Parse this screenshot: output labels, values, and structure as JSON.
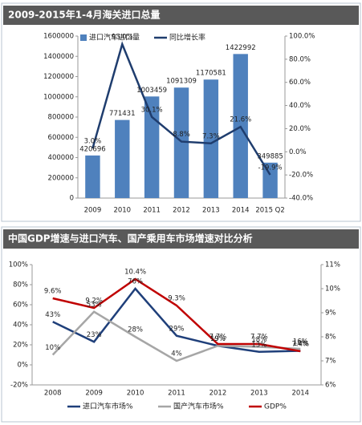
{
  "chart_data": [
    {
      "type": "bar",
      "title": "2009-2015年1-4月海关进口总量",
      "categories": [
        "2009",
        "2010",
        "2011",
        "2012",
        "2013",
        "2014",
        "2015 Q2"
      ],
      "series": [
        {
          "name": "进口汽车进口量",
          "type": "bar",
          "color": "#4f81bd",
          "values": [
            420696,
            771431,
            1003459,
            1091309,
            1170581,
            1422992,
            349885
          ]
        },
        {
          "name": "同比增长率",
          "type": "line",
          "axis": "y2",
          "color": "#1f3d6e",
          "values": [
            3.0,
            93.0,
            30.1,
            8.8,
            7.3,
            21.6,
            -19.9
          ],
          "value_labels": [
            "3.0%",
            "93.0%",
            "30.1%",
            "8.8%",
            "7.3%",
            "21.6%",
            "-19.9%"
          ]
        }
      ],
      "ylim": [
        0,
        1600000
      ],
      "yticks": [
        0,
        200000,
        400000,
        600000,
        800000,
        1000000,
        1200000,
        1400000,
        1600000
      ],
      "y2lim": [
        -40,
        100
      ],
      "y2ticks": [
        {
          "value": -40,
          "label": "-40.0%"
        },
        {
          "value": -20,
          "label": "-20.0%"
        },
        {
          "value": 0,
          "label": "0.0%"
        },
        {
          "value": 20,
          "label": "20.0%"
        },
        {
          "value": 40,
          "label": "40.0%"
        },
        {
          "value": 60,
          "label": "60.0%"
        },
        {
          "value": 80,
          "label": "80.0%"
        },
        {
          "value": 100,
          "label": "100.0%"
        }
      ],
      "legend": "top"
    },
    {
      "type": "line",
      "title": "中国GDP增速与进口汽车、国产乘用车市场增速对比分析",
      "categories": [
        "2008",
        "2009",
        "2010",
        "2011",
        "2012",
        "2013",
        "2014"
      ],
      "series": [
        {
          "name": "进口汽车市场%",
          "color": "#1f3f7a",
          "values": [
            43,
            23,
            76,
            29,
            19,
            13,
            14
          ],
          "value_labels": [
            "43%",
            "23%",
            "76%",
            "29%",
            "19%",
            "13%",
            "14%"
          ]
        },
        {
          "name": "国产汽车市场%",
          "color": "#a6a6a6",
          "values": [
            10,
            53,
            28,
            4,
            19,
            18,
            16
          ],
          "value_labels": [
            "10%",
            "53%",
            "28%",
            "4%",
            "19%",
            "18%",
            "16%"
          ]
        },
        {
          "name": "GDP%",
          "axis": "y2",
          "color": "#c00000",
          "values": [
            9.6,
            9.2,
            10.4,
            9.3,
            7.7,
            7.7,
            7.4
          ],
          "value_labels": [
            "9.6%",
            "9.2%",
            "10.4%",
            "9.3%",
            "7.7%",
            "7.7%",
            "7.4%"
          ]
        }
      ],
      "ylim": [
        -20,
        100
      ],
      "yticks": [
        {
          "value": -20,
          "label": "-20%"
        },
        {
          "value": 0,
          "label": "0%"
        },
        {
          "value": 20,
          "label": "20%"
        },
        {
          "value": 40,
          "label": "40%"
        },
        {
          "value": 60,
          "label": "60%"
        },
        {
          "value": 80,
          "label": "80%"
        },
        {
          "value": 100,
          "label": "100%"
        }
      ],
      "y2lim": [
        6,
        11
      ],
      "y2ticks": [
        {
          "value": 6,
          "label": "6%"
        },
        {
          "value": 7,
          "label": "7%"
        },
        {
          "value": 8,
          "label": "8%"
        },
        {
          "value": 9,
          "label": "9%"
        },
        {
          "value": 10,
          "label": "10%"
        },
        {
          "value": 11,
          "label": "11%"
        }
      ],
      "legend": "bottom"
    }
  ]
}
